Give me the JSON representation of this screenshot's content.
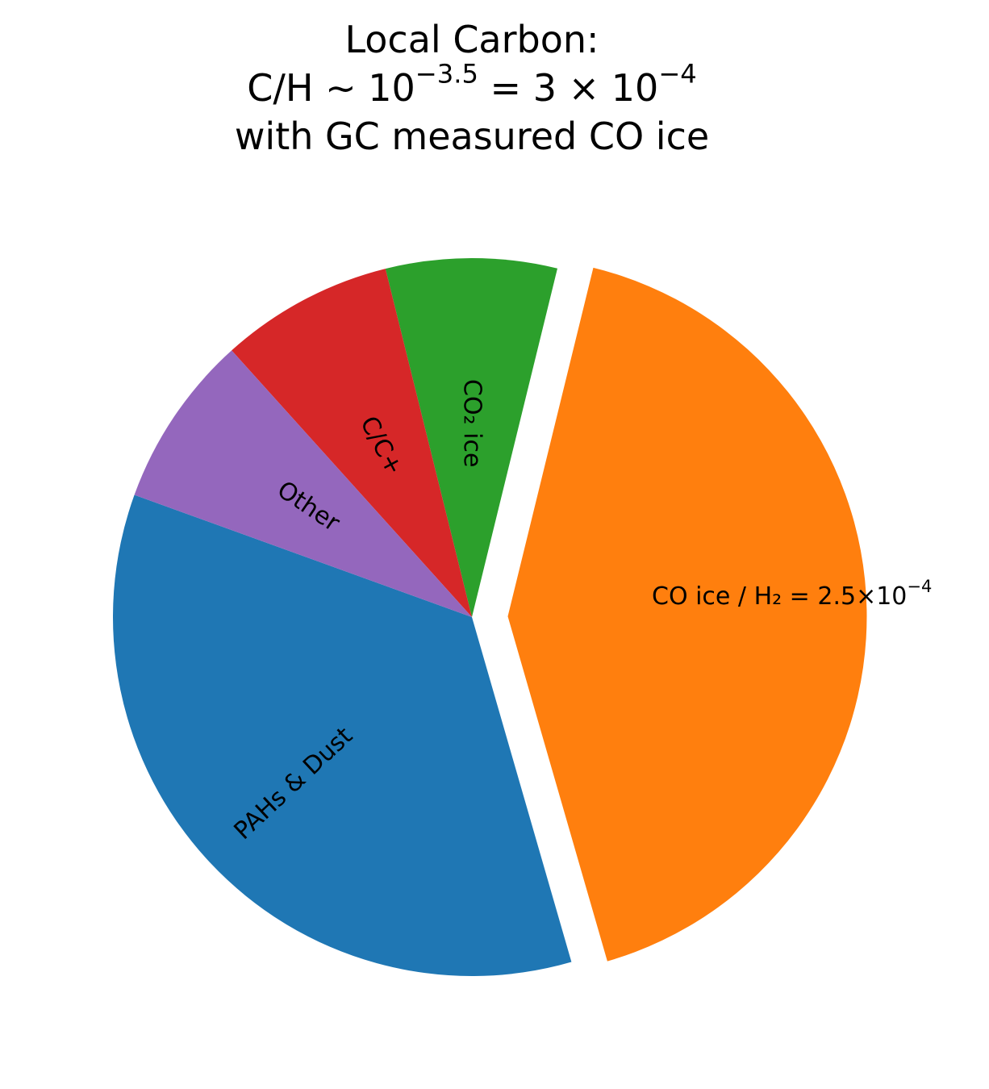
{
  "chart_data": {
    "type": "pie",
    "title": [
      [
        {
          "text": "Local Carbon:"
        }
      ],
      [
        {
          "text": "C/H ∼ 10"
        },
        {
          "sup": "−3.5"
        },
        {
          "text": " = 3 × 10"
        },
        {
          "sup": "−4"
        }
      ],
      [
        {
          "text": "with GC measured CO ice"
        }
      ]
    ],
    "categories": [
      [
        {
          "text": "PAHs & Dust"
        }
      ],
      [
        {
          "text": "CO ice / H₂ = 2.5×10"
        },
        {
          "sup": "−4"
        }
      ],
      [
        {
          "text": "CO₂ ice"
        }
      ],
      [
        {
          "text": "C/C+"
        }
      ],
      [
        {
          "text": "Other"
        }
      ]
    ],
    "values": [
      35,
      41.7,
      7.7,
      7.8,
      7.8
    ],
    "colors": [
      "#1f77b4",
      "#ff7f0e",
      "#2ca02c",
      "#d62728",
      "#9467bd"
    ],
    "explode": [
      0,
      0.1,
      0,
      0,
      0
    ]
  }
}
